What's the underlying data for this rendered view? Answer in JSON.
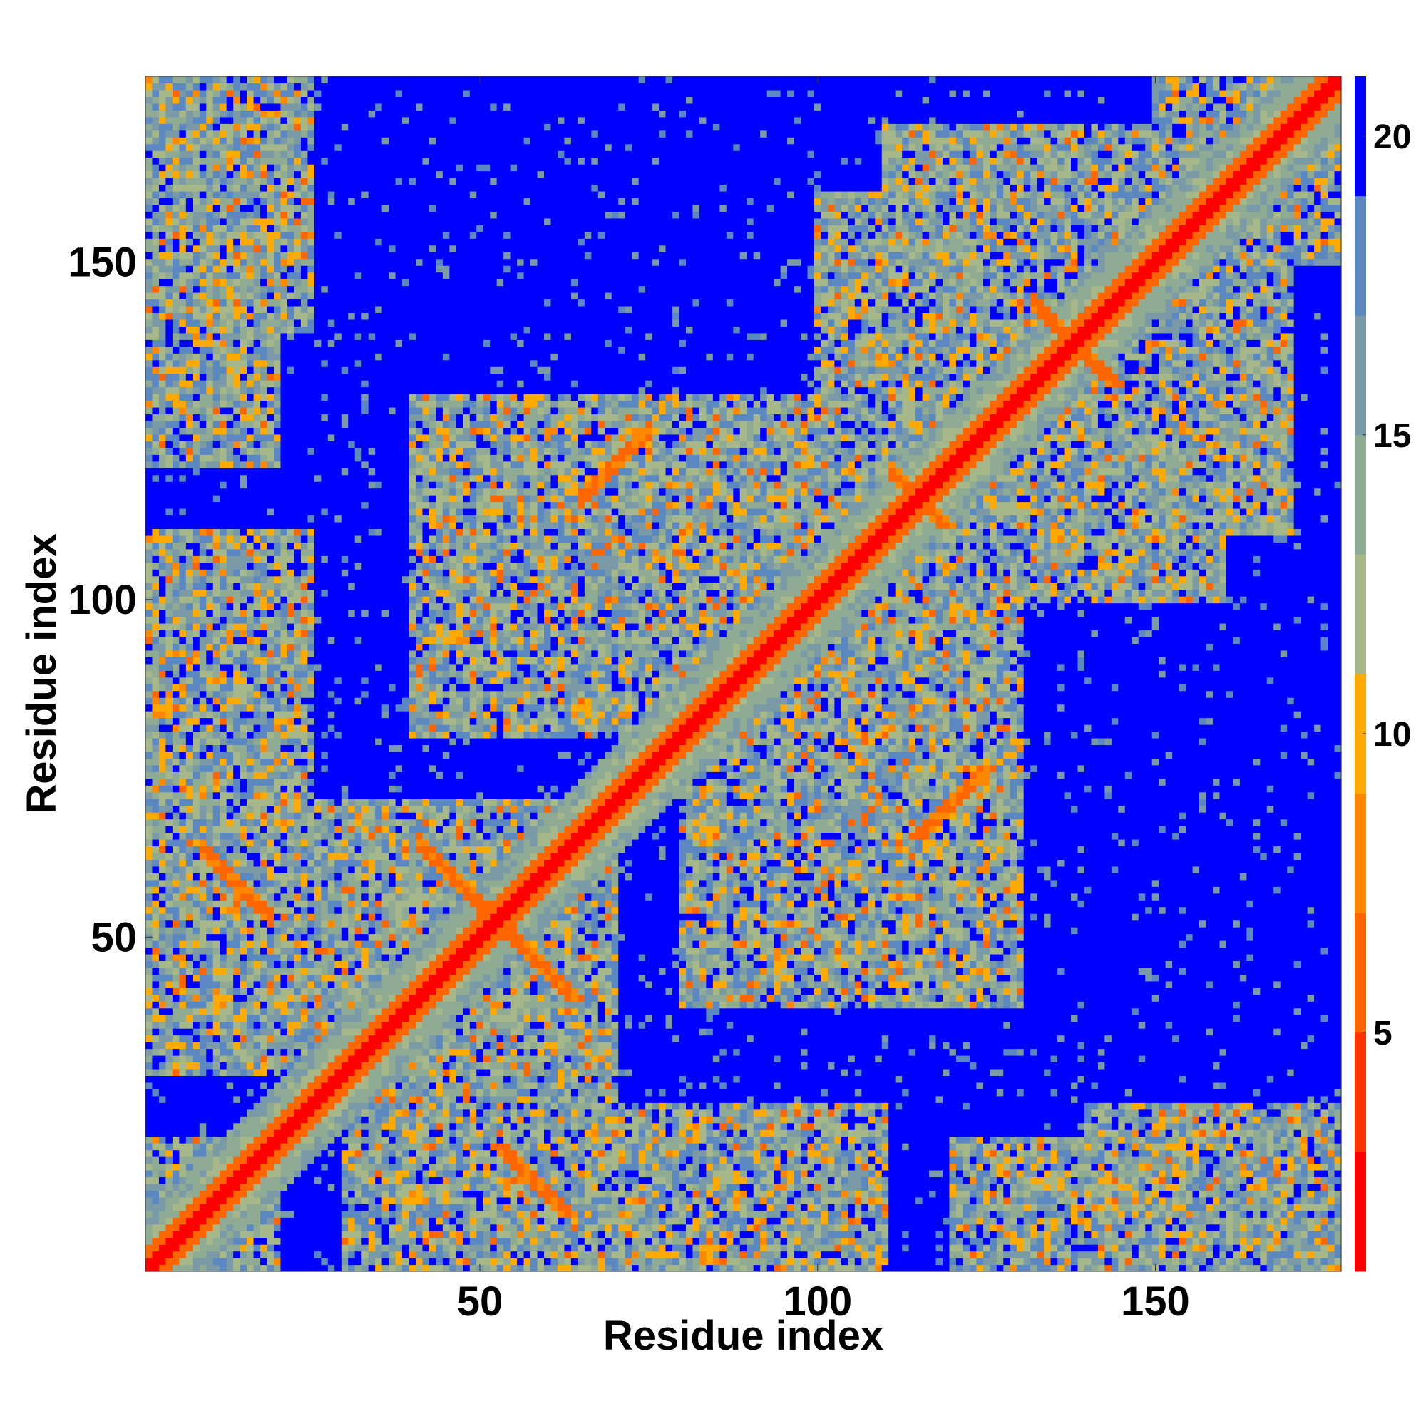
{
  "chart_data": {
    "type": "heatmap",
    "title": "",
    "xlabel": "Residue index",
    "ylabel": "Residue index",
    "n_residues": 177,
    "xlim": [
      1,
      177
    ],
    "ylim": [
      1,
      177
    ],
    "x_ticks": [
      50,
      100,
      150
    ],
    "y_ticks": [
      50,
      100,
      150
    ],
    "colorbar": {
      "vmin": 1,
      "vmax": 21,
      "ticks": [
        5,
        10,
        15,
        20
      ],
      "colors": [
        "#ff0000",
        "#ff3300",
        "#ff6600",
        "#ff8800",
        "#ffaa00",
        "#a6b88a",
        "#8fab93",
        "#7a9aa8",
        "#5b88c0",
        "#0000ff"
      ]
    },
    "description_of_values": "pairwise residue distance map; diagonal band low values, off-diagonal contact clusters",
    "diagonal_band_width": 3,
    "secondary_structure_contacts": [
      {
        "center": [
          14,
          58
        ],
        "orientation": "anti",
        "length": 10
      },
      {
        "center": [
          48,
          57
        ],
        "orientation": "anti",
        "length": 14
      },
      {
        "center": [
          57,
          18
        ],
        "orientation": "anti",
        "length": 10
      },
      {
        "center": [
          117,
          14
        ],
        "orientation": "anti",
        "length": 6
      },
      {
        "center": [
          138,
          138
        ],
        "orientation": "cross",
        "length": 12
      },
      {
        "center": [
          70,
          120
        ],
        "orientation": "parallel",
        "length": 10
      },
      {
        "center": [
          115,
          115
        ],
        "orientation": "cross",
        "length": 8
      }
    ],
    "contact_clusters": [
      {
        "x": [
          1,
          18
        ],
        "y": [
          1,
          20
        ]
      },
      {
        "x": [
          1,
          20
        ],
        "y": [
          120,
          177
        ]
      },
      {
        "x": [
          1,
          70
        ],
        "y": [
          30,
          70
        ]
      },
      {
        "x": [
          40,
          100
        ],
        "y": [
          80,
          130
        ]
      },
      {
        "x": [
          40,
          70
        ],
        "y": [
          1,
          30
        ]
      },
      {
        "x": [
          80,
          130
        ],
        "y": [
          40,
          110
        ]
      },
      {
        "x": [
          100,
          170
        ],
        "y": [
          110,
          160
        ]
      },
      {
        "x": [
          140,
          177
        ],
        "y": [
          1,
          25
        ]
      },
      {
        "x": [
          150,
          177
        ],
        "y": [
          150,
          177
        ]
      },
      {
        "x": [
          60,
          110
        ],
        "y": [
          1,
          25
        ]
      }
    ]
  }
}
